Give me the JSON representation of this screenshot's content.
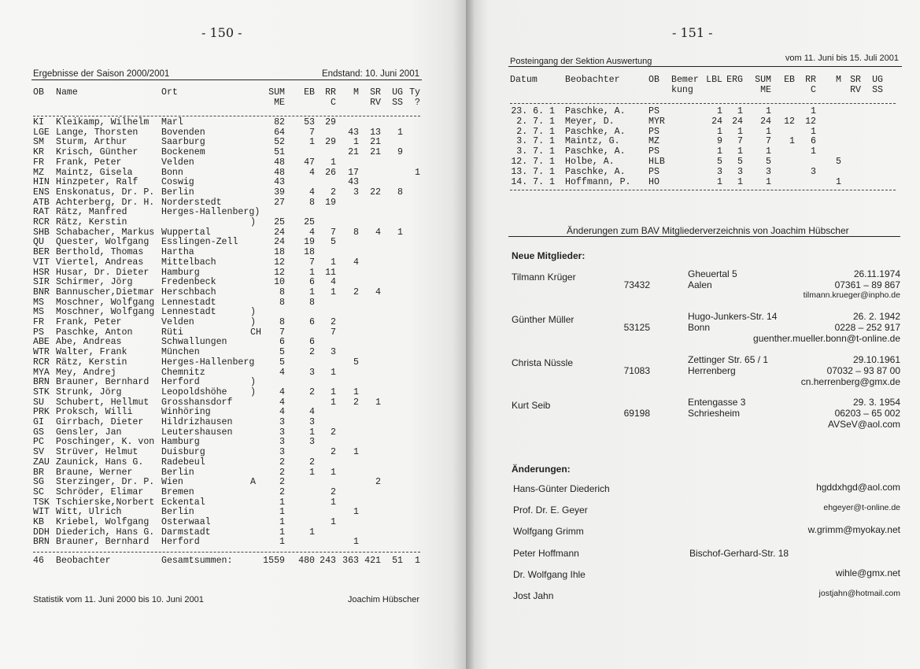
{
  "left": {
    "page_number": "- 150 -",
    "header_left": "Ergebnisse der Saison 2000/2001",
    "header_right": "Endstand: 10. Juni 2001",
    "columns": {
      "ob": "OB",
      "name": "Name",
      "ort": "Ort",
      "sum": "SUM\nME",
      "eb": "EB",
      "rr": "RR\nC",
      "m": "M",
      "sr": "SR\nRV",
      "ug": "UG\nSS",
      "ty": "Ty\n?"
    },
    "rows": [
      [
        "KI",
        "Kleikamp, Wilhelm",
        "Marl",
        "",
        "82",
        "53",
        "29",
        "",
        "",
        "",
        ""
      ],
      [
        "LGE",
        "Lange, Thorsten",
        "Bovenden",
        "",
        "64",
        "7",
        "",
        "43",
        "13",
        "1",
        ""
      ],
      [
        "SM",
        "Sturm, Arthur",
        "Saarburg",
        "",
        "52",
        "1",
        "29",
        "1",
        "21",
        "",
        ""
      ],
      [
        "KR",
        "Krisch, Günther",
        "Bockenem",
        "",
        "51",
        "",
        "",
        "21",
        "21",
        "9",
        ""
      ],
      [
        "FR",
        "Frank, Peter",
        "Velden",
        "",
        "48",
        "47",
        "1",
        "",
        "",
        "",
        ""
      ],
      [
        "MZ",
        "Maintz, Gisela",
        "Bonn",
        "",
        "48",
        "4",
        "26",
        "17",
        "",
        "",
        "1"
      ],
      [
        "HIN",
        "Hinzpeter, Ralf",
        "Coswig",
        "",
        "43",
        "",
        "",
        "43",
        "",
        "",
        ""
      ],
      [
        "ENS",
        "Enskonatus, Dr. P.",
        "Berlin",
        "",
        "39",
        "4",
        "2",
        "3",
        "22",
        "8",
        ""
      ],
      [
        "ATB",
        "Achterberg, Dr. H.",
        "Norderstedt",
        "",
        "27",
        "8",
        "19",
        "",
        "",
        "",
        ""
      ],
      [
        "RAT",
        "Rätz, Manfred",
        "Herges-Hallenberg)",
        "",
        "",
        "",
        "",
        "",
        "",
        "",
        ""
      ],
      [
        "RCR",
        "Rätz, Kerstin",
        "",
        ")",
        "25",
        "25",
        "",
        "",
        "",
        "",
        ""
      ],
      [
        "SHB",
        "Schabacher, Markus",
        "Wuppertal",
        "",
        "24",
        "4",
        "7",
        "8",
        "4",
        "1",
        ""
      ],
      [
        "QU",
        "Quester, Wolfgang",
        "Esslingen-Zell",
        "",
        "24",
        "19",
        "5",
        "",
        "",
        "",
        ""
      ],
      [
        "BER",
        "Berthold, Thomas",
        "Hartha",
        "",
        "18",
        "18",
        "",
        "",
        "",
        "",
        ""
      ],
      [
        "VIT",
        "Viertel, Andreas",
        "Mittelbach",
        "",
        "12",
        "7",
        "1",
        "4",
        "",
        "",
        ""
      ],
      [
        "HSR",
        "Husar, Dr. Dieter",
        "Hamburg",
        "",
        "12",
        "1",
        "11",
        "",
        "",
        "",
        ""
      ],
      [
        "SIR",
        "Schirmer, Jörg",
        "Fredenbeck",
        "",
        "10",
        "6",
        "4",
        "",
        "",
        "",
        ""
      ],
      [
        "BNR",
        "Bannuscher,Dietmar",
        "Herschbach",
        "",
        "8",
        "1",
        "1",
        "2",
        "4",
        "",
        ""
      ],
      [
        "MS",
        "Moschner, Wolfgang",
        "Lennestadt",
        "",
        "8",
        "8",
        "",
        "",
        "",
        "",
        ""
      ],
      [
        "MS",
        "Moschner, Wolfgang",
        "Lennestadt",
        ")",
        "",
        "",
        "",
        "",
        "",
        "",
        ""
      ],
      [
        "FR",
        "Frank, Peter",
        "Velden",
        ")",
        "8",
        "6",
        "2",
        "",
        "",
        "",
        ""
      ],
      [
        "PS",
        "Paschke, Anton",
        "Rüti",
        "CH",
        "7",
        "",
        "7",
        "",
        "",
        "",
        ""
      ],
      [
        "ABE",
        "Abe, Andreas",
        "Schwallungen",
        "",
        "6",
        "6",
        "",
        "",
        "",
        "",
        ""
      ],
      [
        "WTR",
        "Walter, Frank",
        "München",
        "",
        "5",
        "2",
        "3",
        "",
        "",
        "",
        ""
      ],
      [
        "RCR",
        "Rätz, Kerstin",
        "Herges-Hallenberg",
        "",
        "5",
        "",
        "",
        "5",
        "",
        "",
        ""
      ],
      [
        "MYA",
        "Mey, Andrej",
        "Chemnitz",
        "",
        "4",
        "3",
        "1",
        "",
        "",
        "",
        ""
      ],
      [
        "BRN",
        "Brauner, Bernhard",
        "Herford",
        ")",
        "",
        "",
        "",
        "",
        "",
        "",
        ""
      ],
      [
        "STK",
        "Strunk, Jörg",
        "Leopoldshöhe",
        ")",
        "4",
        "2",
        "1",
        "1",
        "",
        "",
        ""
      ],
      [
        "SU",
        "Schubert, Hellmut",
        "Grosshansdorf",
        "",
        "4",
        "",
        "1",
        "2",
        "1",
        "",
        ""
      ],
      [
        "PRK",
        "Proksch, Willi",
        "Winhöring",
        "",
        "4",
        "4",
        "",
        "",
        "",
        "",
        ""
      ],
      [
        "GI",
        "Girrbach, Dieter",
        "Hildrizhausen",
        "",
        "3",
        "3",
        "",
        "",
        "",
        "",
        ""
      ],
      [
        "GS",
        "Gensler, Jan",
        "Leutershausen",
        "",
        "3",
        "1",
        "2",
        "",
        "",
        "",
        ""
      ],
      [
        "PC",
        "Poschinger, K. von",
        "Hamburg",
        "",
        "3",
        "3",
        "",
        "",
        "",
        "",
        ""
      ],
      [
        "SV",
        "Strüver, Helmut",
        "Duisburg",
        "",
        "3",
        "",
        "2",
        "1",
        "",
        "",
        ""
      ],
      [
        "ZAU",
        "Zaunick, Hans G.",
        "Radebeul",
        "",
        "2",
        "2",
        "",
        "",
        "",
        "",
        ""
      ],
      [
        "BR",
        "Braune, Werner",
        "Berlin",
        "",
        "2",
        "1",
        "1",
        "",
        "",
        "",
        ""
      ],
      [
        "SG",
        "Sterzinger, Dr. P.",
        "Wien",
        "A",
        "2",
        "",
        "",
        "",
        "2",
        "",
        ""
      ],
      [
        "SC",
        "Schröder, Elimar",
        "Bremen",
        "",
        "2",
        "",
        "2",
        "",
        "",
        "",
        ""
      ],
      [
        "TSK",
        "Tschierske,Norbert",
        "Eckental",
        "",
        "1",
        "",
        "1",
        "",
        "",
        "",
        ""
      ],
      [
        "WIT",
        "Witt, Ulrich",
        "Berlin",
        "",
        "1",
        "",
        "",
        "1",
        "",
        "",
        ""
      ],
      [
        "KB",
        "Kriebel, Wolfgang",
        "Osterwaal",
        "",
        "1",
        "",
        "1",
        "",
        "",
        "",
        ""
      ],
      [
        "DDH",
        "Diederich, Hans G.",
        "Darmstadt",
        "",
        "1",
        "1",
        "",
        "",
        "",
        "",
        ""
      ],
      [
        "BRN",
        "Brauner, Bernhard",
        "Herford",
        "",
        "1",
        "",
        "",
        "1",
        "",
        "",
        ""
      ]
    ],
    "totals": [
      "46",
      "Beobachter",
      "Gesamtsummen:",
      "",
      "1559",
      "480",
      "243",
      "363",
      "421",
      "51",
      "1"
    ],
    "footer_left": "Statistik vom 11. Juni 2000 bis 10. Juni 2001",
    "footer_right": "Joachim Hübscher"
  },
  "right": {
    "page_number": "- 151 -",
    "header_left": "Posteingang der Sektion Auswertung",
    "header_right": "vom 11. Juni bis 15. Juli 2001",
    "columns": {
      "datum": "Datum",
      "beob": "Beobachter",
      "ob": "OB",
      "bem": "Bemer\nkung",
      "lbl": "LBL",
      "erg": "ERG",
      "sum": "SUM\nME",
      "eb": "EB",
      "rr": "RR\nC",
      "m": "M",
      "sr": "SR\nRV",
      "ug": "UG\nSS"
    },
    "rows": [
      [
        "23. 6. 1",
        "Paschke, A.",
        "PS",
        "",
        "1",
        "1",
        "1",
        "",
        "1",
        "",
        "",
        ""
      ],
      [
        "2. 7. 1",
        "Meyer, D.",
        "MYR",
        "",
        "24",
        "24",
        "24",
        "12",
        "12",
        "",
        "",
        ""
      ],
      [
        "2. 7. 1",
        "Paschke, A.",
        "PS",
        "",
        "1",
        "1",
        "1",
        "",
        "1",
        "",
        "",
        ""
      ],
      [
        "3. 7. 1",
        "Maintz, G.",
        "MZ",
        "",
        "9",
        "7",
        "7",
        "1",
        "6",
        "",
        "",
        ""
      ],
      [
        "3. 7. 1",
        "Paschke, A.",
        "PS",
        "",
        "1",
        "1",
        "1",
        "",
        "1",
        "",
        "",
        ""
      ],
      [
        "12. 7. 1",
        "Holbe, A.",
        "HLB",
        "",
        "5",
        "5",
        "5",
        "",
        "",
        "5",
        "",
        ""
      ],
      [
        "13. 7. 1",
        "Paschke, A.",
        "PS",
        "",
        "3",
        "3",
        "3",
        "",
        "3",
        "",
        "",
        ""
      ],
      [
        "14. 7. 1",
        "Hoffmann, P.",
        "HO",
        "",
        "1",
        "1",
        "1",
        "",
        "",
        "1",
        "",
        ""
      ]
    ],
    "members_title": "Änderungen zum BAV Mitgliederverzeichnis von Joachim Hübscher",
    "new_members_heading": "Neue Mitglieder:",
    "new_members": [
      {
        "name": "Tilmann Krüger",
        "street": "Gheuertal 5",
        "zip": "73432",
        "city": "Aalen",
        "birth": "26.11.1974",
        "phone": "07361 – 89 867",
        "email": "tilmann.krueger@inpho.de"
      },
      {
        "name": "Günther Müller",
        "street": "Hugo-Junkers-Str. 14",
        "zip": "53125",
        "city": "Bonn",
        "birth": "26. 2. 1942",
        "phone": "0228 – 252 917",
        "email": "guenther.mueller.bonn@t-online.de"
      },
      {
        "name": "Christa Nüssle",
        "street": "Zettinger Str. 65 / 1",
        "zip": "71083",
        "city": "Herrenberg",
        "birth": "29.10.1961",
        "phone": "07032 – 93 87 00",
        "email": "cn.herrenberg@gmx.de"
      },
      {
        "name": "Kurt Seib",
        "street": "Entengasse 3",
        "zip": "69198",
        "city": "Schriesheim",
        "birth": "29. 3. 1954",
        "phone": "06203 – 65 002",
        "email": "AVSeV@aol.com"
      }
    ],
    "changes_heading": "Änderungen:",
    "changes": [
      {
        "name": "Hans-Günter Diederich",
        "street": "",
        "email": "hgddxhgd@aol.com"
      },
      {
        "name": "Prof. Dr. E. Geyer",
        "street": "",
        "email": "ehgeyer@t-online.de"
      },
      {
        "name": "Wolfgang Grimm",
        "street": "",
        "email": "w.grimm@myokay.net"
      },
      {
        "name": "Peter Hoffmann",
        "street": "Bischof-Gerhard-Str. 18",
        "email": ""
      },
      {
        "name": "Dr. Wolfgang Ihle",
        "street": "",
        "email": "wihle@gmx.net"
      },
      {
        "name": "Jost Jahn",
        "street": "",
        "email": "jostjahn@hotmail.com"
      }
    ]
  }
}
